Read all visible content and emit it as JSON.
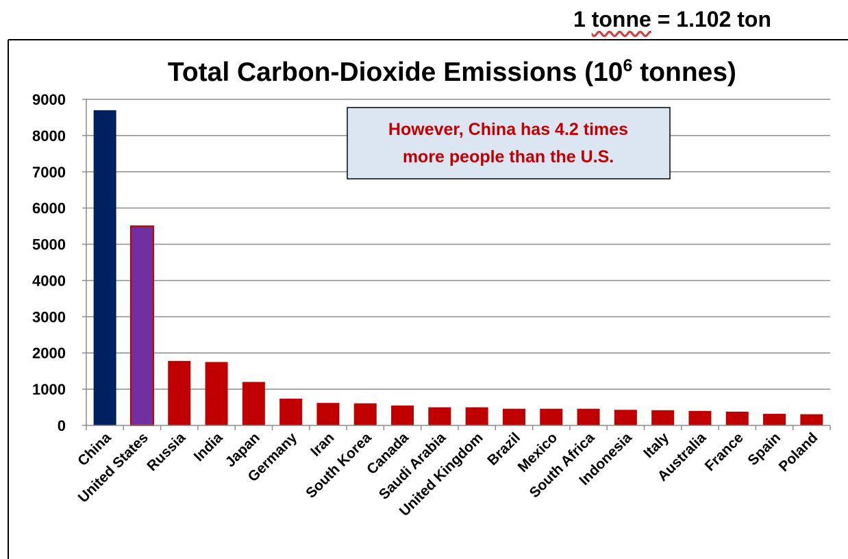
{
  "top_note": {
    "prefix": "1",
    "word": "tonne",
    "suffix": "= 1.102 ton"
  },
  "title": {
    "main": "Total Carbon-Dioxide Emissions (10",
    "sup": "6",
    "end": " tonnes)"
  },
  "callout": {
    "line1": "However, China has 4.2 times",
    "line2": "more people than the U.S."
  },
  "colors": {
    "china": "#002060",
    "united_states": "#7030a0",
    "united_states_border": "#c00000",
    "others": "#c00000",
    "callout_bg": "#dce6f2",
    "grid": "#8c8c8c"
  },
  "chart_data": {
    "type": "bar",
    "title": "Total Carbon-Dioxide Emissions (10^6 tonnes)",
    "xlabel": "",
    "ylabel": "",
    "ylim": [
      0,
      9000
    ],
    "yticks": [
      0,
      1000,
      2000,
      3000,
      4000,
      5000,
      6000,
      7000,
      8000,
      9000
    ],
    "grid": true,
    "categories": [
      "China",
      "United States",
      "Russia",
      "India",
      "Japan",
      "Germany",
      "Iran",
      "South Korea",
      "Canada",
      "Saudi Arabia",
      "United Kingdom",
      "Brazil",
      "Mexico",
      "South Africa",
      "Indonesia",
      "Italy",
      "Australia",
      "France",
      "Spain",
      "Poland"
    ],
    "values": [
      8700,
      5500,
      1780,
      1750,
      1200,
      740,
      620,
      610,
      550,
      500,
      500,
      460,
      460,
      460,
      430,
      420,
      400,
      380,
      320,
      310
    ]
  }
}
